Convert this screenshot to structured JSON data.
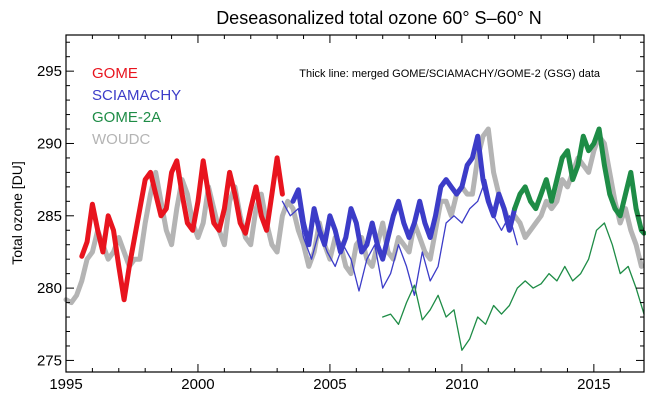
{
  "chart_data": {
    "type": "line",
    "title": "Deseasonalized total ozone 60° S–60° N",
    "xlabel": "",
    "ylabel": "Total ozone [DU]",
    "xlim": [
      1995,
      2016.9
    ],
    "ylim": [
      274.2,
      297.5
    ],
    "x_ticks": [
      1995,
      2000,
      2005,
      2010,
      2015
    ],
    "x_tick_labels": [
      "1995",
      "2000",
      "2005",
      "2010",
      "2015"
    ],
    "y_ticks": [
      275,
      280,
      285,
      290,
      295
    ],
    "y_tick_labels": [
      "275",
      "280",
      "285",
      "290",
      "295"
    ],
    "grid": false,
    "legend_position": "top-left",
    "annotation": "Thick line: merged GOME/SCIAMACHY/GOME-2 (GSG) data",
    "series": [
      {
        "name": "WOUDC",
        "color": "#b4b4b4",
        "style": "thick",
        "x": [
          1995.0,
          1995.2,
          1995.4,
          1995.6,
          1995.8,
          1996.0,
          1996.2,
          1996.4,
          1996.6,
          1996.8,
          1997.0,
          1997.2,
          1997.4,
          1997.6,
          1997.8,
          1998.0,
          1998.2,
          1998.4,
          1998.6,
          1998.8,
          1999.0,
          1999.2,
          1999.4,
          1999.6,
          1999.8,
          2000.0,
          2000.2,
          2000.4,
          2000.6,
          2000.8,
          2001.0,
          2001.2,
          2001.4,
          2001.6,
          2001.8,
          2002.0,
          2002.2,
          2002.4,
          2002.6,
          2002.8,
          2003.0,
          2003.2,
          2003.4,
          2003.6,
          2003.8,
          2004.0,
          2004.2,
          2004.4,
          2004.6,
          2004.8,
          2005.0,
          2005.2,
          2005.4,
          2005.6,
          2005.8,
          2006.0,
          2006.2,
          2006.4,
          2006.6,
          2006.8,
          2007.0,
          2007.2,
          2007.4,
          2007.6,
          2007.8,
          2008.0,
          2008.2,
          2008.4,
          2008.6,
          2008.8,
          2009.0,
          2009.2,
          2009.4,
          2009.6,
          2009.8,
          2010.0,
          2010.2,
          2010.4,
          2010.6,
          2010.8,
          2011.0,
          2011.2,
          2011.4,
          2011.6,
          2011.8,
          2012.0,
          2012.2,
          2012.4,
          2012.6,
          2012.8,
          2013.0,
          2013.2,
          2013.4,
          2013.6,
          2013.8,
          2014.0,
          2014.2,
          2014.4,
          2014.6,
          2014.8,
          2015.0,
          2015.2,
          2015.4,
          2015.6,
          2015.8,
          2016.0,
          2016.2,
          2016.4,
          2016.6,
          2016.8
        ],
        "y": [
          279.2,
          279.0,
          279.5,
          280.5,
          282.0,
          282.5,
          284.0,
          283.0,
          282.0,
          282.5,
          283.5,
          282.5,
          281.5,
          282.0,
          282.0,
          284.5,
          286.5,
          288.0,
          286.0,
          284.0,
          283.0,
          285.5,
          287.5,
          286.5,
          284.5,
          283.5,
          284.5,
          287.0,
          285.5,
          284.0,
          283.0,
          286.0,
          287.0,
          285.0,
          283.5,
          283.0,
          285.5,
          286.5,
          284.5,
          283.0,
          282.5,
          285.0,
          286.0,
          285.5,
          284.0,
          283.0,
          281.5,
          282.5,
          284.5,
          283.0,
          282.0,
          283.5,
          283.0,
          281.5,
          281.0,
          283.0,
          283.5,
          282.0,
          281.5,
          283.0,
          284.5,
          282.5,
          282.0,
          283.5,
          283.0,
          282.5,
          284.5,
          283.5,
          282.5,
          282.0,
          284.0,
          286.0,
          286.0,
          285.0,
          286.5,
          287.0,
          286.5,
          286.5,
          289.0,
          290.5,
          291.0,
          288.0,
          286.5,
          285.5,
          284.5,
          285.0,
          284.5,
          283.5,
          284.0,
          284.5,
          285.0,
          286.0,
          285.5,
          286.0,
          287.5,
          287.0,
          288.0,
          289.0,
          288.5,
          288.0,
          289.5,
          290.5,
          290.0,
          288.0,
          286.0,
          284.5,
          285.5,
          284.0,
          283.0,
          281.5
        ]
      },
      {
        "name": "GOME",
        "color": "#e8141e",
        "style": "thick",
        "x": [
          1995.6,
          1995.8,
          1996.0,
          1996.2,
          1996.4,
          1996.6,
          1996.8,
          1997.0,
          1997.2,
          1997.4,
          1997.6,
          1997.8,
          1998.0,
          1998.2,
          1998.4,
          1998.6,
          1998.8,
          1999.0,
          1999.2,
          1999.4,
          1999.6,
          1999.8,
          2000.0,
          2000.2,
          2000.4,
          2000.6,
          2000.8,
          2001.0,
          2001.2,
          2001.4,
          2001.6,
          2001.8,
          2002.0,
          2002.2,
          2002.4,
          2002.6,
          2002.8,
          2003.0,
          2003.2
        ],
        "y": [
          282.2,
          283.2,
          285.8,
          284.0,
          282.5,
          285.0,
          284.0,
          281.5,
          279.2,
          281.5,
          283.5,
          285.5,
          287.5,
          288.0,
          286.5,
          285.0,
          285.5,
          288.0,
          288.8,
          286.5,
          284.5,
          284.0,
          286.0,
          288.8,
          286.5,
          284.5,
          284.0,
          285.5,
          288.0,
          286.5,
          284.5,
          283.8,
          285.5,
          287.0,
          285.0,
          284.0,
          286.5,
          289.0,
          286.5
        ]
      },
      {
        "name": "SCIAMACHY",
        "color": "#3c3cc8",
        "style": "thick",
        "x": [
          2003.6,
          2003.8,
          2004.0,
          2004.2,
          2004.4,
          2004.6,
          2004.8,
          2005.0,
          2005.2,
          2005.4,
          2005.6,
          2005.8,
          2006.0,
          2006.2,
          2006.4,
          2006.6,
          2006.8,
          2007.0,
          2007.2,
          2007.4,
          2007.6,
          2007.8,
          2008.0,
          2008.2,
          2008.4,
          2008.6,
          2008.8,
          2009.0,
          2009.2,
          2009.4,
          2009.6,
          2009.8,
          2010.0,
          2010.2,
          2010.4,
          2010.6,
          2010.8,
          2011.0,
          2011.2,
          2011.4,
          2011.6,
          2011.8,
          2012.0
        ],
        "y": [
          286.0,
          286.8,
          284.5,
          283.0,
          285.5,
          284.0,
          283.0,
          285.0,
          284.0,
          282.5,
          283.5,
          285.5,
          284.5,
          282.5,
          283.0,
          284.5,
          283.0,
          282.0,
          283.5,
          285.0,
          286.0,
          284.5,
          283.5,
          284.5,
          286.0,
          284.5,
          283.5,
          285.0,
          287.0,
          287.5,
          287.0,
          286.5,
          287.0,
          288.5,
          289.0,
          290.5,
          287.5,
          286.0,
          285.0,
          286.5,
          285.5,
          284.0,
          285.5
        ]
      },
      {
        "name": "SCIAMACHY",
        "color": "#3c3cc8",
        "style": "thin",
        "x": [
          2003.2,
          2003.5,
          2003.8,
          2004.0,
          2004.3,
          2004.6,
          2004.9,
          2005.2,
          2005.5,
          2005.8,
          2006.1,
          2006.4,
          2006.7,
          2007.0,
          2007.3,
          2007.6,
          2007.9,
          2008.2,
          2008.5,
          2008.8,
          2009.1,
          2009.4,
          2009.7,
          2010.0,
          2010.3,
          2010.6,
          2010.9,
          2011.2,
          2011.5,
          2011.8,
          2012.1
        ],
        "y": [
          286.0,
          285.0,
          285.5,
          283.5,
          282.0,
          284.0,
          282.5,
          281.5,
          283.0,
          282.0,
          279.8,
          282.0,
          283.0,
          280.0,
          281.0,
          283.0,
          281.5,
          279.5,
          282.5,
          280.5,
          281.5,
          284.5,
          285.0,
          284.5,
          285.5,
          286.0,
          287.5,
          285.0,
          284.0,
          285.0,
          283.0
        ]
      },
      {
        "name": "GOME-2A",
        "color": "#1e8c46",
        "style": "thick",
        "x": [
          2012.0,
          2012.2,
          2012.4,
          2012.6,
          2012.8,
          2013.0,
          2013.2,
          2013.4,
          2013.6,
          2013.8,
          2014.0,
          2014.2,
          2014.4,
          2014.6,
          2014.8,
          2015.0,
          2015.2,
          2015.4,
          2015.6,
          2015.8,
          2016.0,
          2016.2,
          2016.4,
          2016.6,
          2016.8,
          2016.9
        ],
        "y": [
          285.5,
          286.5,
          287.0,
          286.0,
          285.5,
          286.5,
          287.5,
          286.0,
          287.5,
          289.0,
          289.5,
          287.5,
          288.5,
          290.5,
          289.5,
          290.0,
          291.0,
          288.5,
          286.5,
          285.5,
          285.0,
          286.5,
          288.0,
          285.5,
          284.0,
          283.8
        ]
      },
      {
        "name": "GOME-2A",
        "color": "#1e8c46",
        "style": "thin",
        "x": [
          2007.0,
          2007.3,
          2007.6,
          2007.9,
          2008.2,
          2008.5,
          2008.8,
          2009.1,
          2009.4,
          2009.7,
          2010.0,
          2010.3,
          2010.6,
          2010.9,
          2011.2,
          2011.5,
          2011.8,
          2012.1,
          2012.4,
          2012.7,
          2013.0,
          2013.3,
          2013.6,
          2013.9,
          2014.2,
          2014.5,
          2014.8,
          2015.1,
          2015.4,
          2015.7,
          2016.0,
          2016.3,
          2016.6,
          2016.9
        ],
        "y": [
          278.0,
          278.2,
          277.5,
          279.0,
          280.2,
          277.8,
          278.5,
          279.5,
          278.0,
          278.5,
          275.7,
          276.5,
          278.0,
          277.5,
          278.8,
          278.2,
          278.8,
          280.0,
          280.5,
          280.0,
          280.3,
          281.0,
          280.5,
          281.5,
          280.5,
          281.0,
          282.0,
          284.0,
          284.5,
          283.0,
          281.0,
          281.5,
          280.0,
          278.2
        ]
      }
    ]
  },
  "legend": [
    {
      "label": "GOME",
      "color": "#e8141e"
    },
    {
      "label": "SCIAMACHY",
      "color": "#3c3cc8"
    },
    {
      "label": "GOME-2A",
      "color": "#1e8c46"
    },
    {
      "label": "WOUDC",
      "color": "#b4b4b4"
    }
  ]
}
